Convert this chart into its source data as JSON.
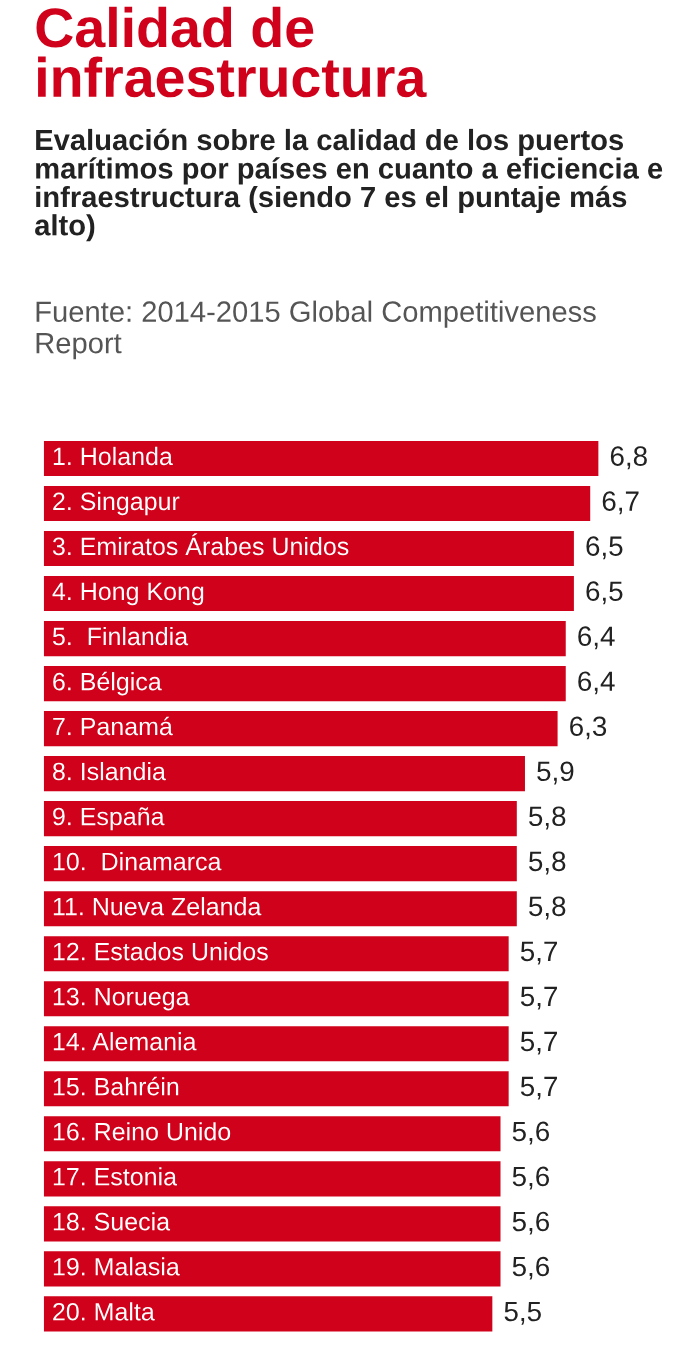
{
  "chart_data": {
    "type": "bar",
    "orientation": "horizontal",
    "title": "Calidad de infraestructura",
    "subtitle": "Evaluación sobre la calidad de los puertos marítimos por países en cuanto a eficiencia e infraestructura (siendo 7 es el puntaje más alto)",
    "annotations": [
      "Fuente: 2014-2015 Global Competitiveness Report"
    ],
    "categories": [
      "1. Holanda",
      "2. Singapur",
      "3. Emiratos Árabes Unidos",
      "4. Hong Kong",
      "5.  Finlandia",
      "6. Bélgica",
      "7. Panamá",
      "8. Islandia",
      "9. España",
      "10.  Dinamarca",
      "11. Nueva Zelanda",
      "12. Estados Unidos",
      "13. Noruega",
      "14. Alemania",
      "15. Bahréin",
      "16. Reino Unido",
      "17. Estonia",
      "18. Suecia",
      "19. Malasia",
      "20. Malta"
    ],
    "values": [
      6.8,
      6.7,
      6.5,
      6.5,
      6.4,
      6.4,
      6.3,
      5.9,
      5.8,
      5.8,
      5.8,
      5.7,
      5.7,
      5.7,
      5.7,
      5.6,
      5.6,
      5.6,
      5.6,
      5.5
    ],
    "value_labels": [
      "6,8",
      "6,7",
      "6,5",
      "6,5",
      "6,4",
      "6,4",
      "6,3",
      "5,9",
      "5,8",
      "5,8",
      "5,8",
      "5,7",
      "5,7",
      "5,7",
      "5,7",
      "5,6",
      "5,6",
      "5,6",
      "5,6",
      "5,5"
    ],
    "color": "#d0021b"
  }
}
